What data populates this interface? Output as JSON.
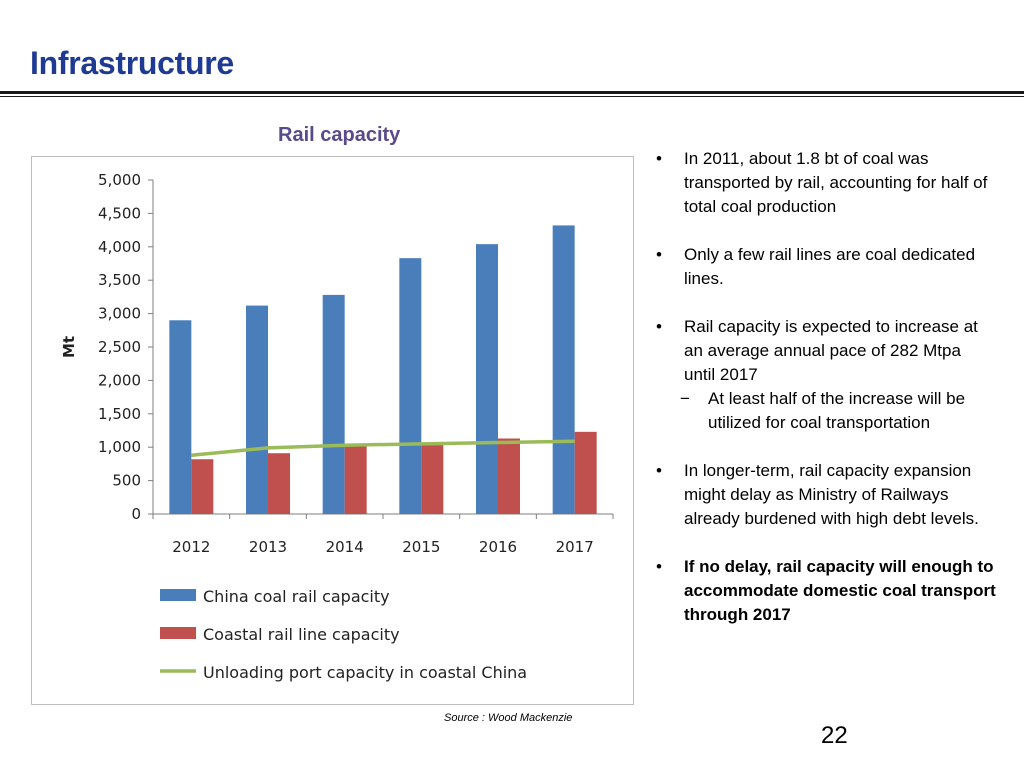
{
  "slide": {
    "title": "Infrastructure",
    "chart_heading": "Rail capacity",
    "source": "Source : Wood Mackenzie",
    "page_number": "22"
  },
  "bullets": [
    {
      "text": "In 2011, about 1.8 bt of coal was transported by rail, accounting for half of total coal production"
    },
    {
      "text": "Only a few rail lines are coal dedicated lines."
    },
    {
      "text": "Rail capacity is expected to increase at an average annual pace of 282 Mtpa until 2017",
      "sub": "At least  half of the increase will be utilized for coal transportation"
    },
    {
      "text": "In longer-term, rail capacity expansion might delay as Ministry of Railways already burdened with high debt levels."
    },
    {
      "text": "If no delay, rail capacity will enough to accommodate domestic coal transport through 2017",
      "bold": true
    }
  ],
  "chart_data": {
    "type": "bar",
    "title": "Rail capacity",
    "ylabel": "Mt",
    "ylim": [
      0,
      5000
    ],
    "yticks": [
      "5,000",
      "4,500",
      "4,000",
      "3,500",
      "3,000",
      "2,500",
      "2,000",
      "1,500",
      "1,000",
      "500",
      "0"
    ],
    "categories": [
      "2012",
      "2013",
      "2014",
      "2015",
      "2016",
      "2017"
    ],
    "series": [
      {
        "name": "China coal rail capacity",
        "type": "bar",
        "color": "#4a7ebb",
        "values": [
          2900,
          3120,
          3280,
          3830,
          4040,
          4320
        ]
      },
      {
        "name": "Coastal rail line capacity",
        "type": "bar",
        "color": "#c0504d",
        "values": [
          820,
          910,
          1020,
          1040,
          1130,
          1230
        ]
      },
      {
        "name": "Unloading port capacity in coastal China",
        "type": "line",
        "color": "#9bbb59",
        "values": [
          880,
          990,
          1030,
          1050,
          1070,
          1090
        ]
      }
    ],
    "legend_position": "bottom",
    "grid": false
  }
}
